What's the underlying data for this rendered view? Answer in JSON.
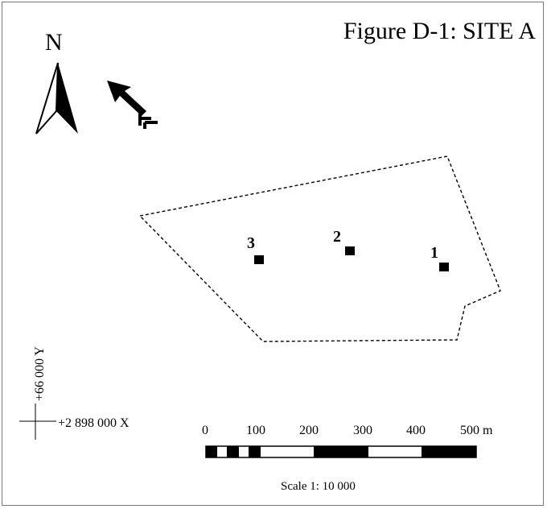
{
  "title": "Figure D-1: SITE A",
  "north_arrow": {
    "letter": "N",
    "icon": "north-arrow-icon"
  },
  "grid_arrow": {
    "icon": "grid-direction-arrow-icon"
  },
  "sites": [
    {
      "label": "1"
    },
    {
      "label": "2"
    },
    {
      "label": "3"
    }
  ],
  "boundary": {
    "style": "dashed",
    "color": "#000000"
  },
  "coordinates": {
    "y": "+66 000 Y",
    "x": "+2 898 000 X"
  },
  "scale_bar": {
    "ticks": [
      "0",
      "100",
      "200",
      "300",
      "400",
      "500 m"
    ],
    "ratio_text": "Scale 1: 10 000"
  },
  "colors": {
    "ink": "#000000",
    "paper": "#ffffff",
    "frame": "#777777"
  }
}
